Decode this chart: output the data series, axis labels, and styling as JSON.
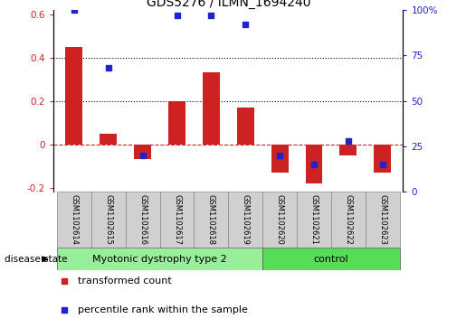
{
  "title": "GDS5276 / ILMN_1694240",
  "samples": [
    "GSM1102614",
    "GSM1102615",
    "GSM1102616",
    "GSM1102617",
    "GSM1102618",
    "GSM1102619",
    "GSM1102620",
    "GSM1102621",
    "GSM1102622",
    "GSM1102623"
  ],
  "red_bars": [
    0.45,
    0.05,
    -0.07,
    0.2,
    0.33,
    0.17,
    -0.13,
    -0.18,
    -0.05,
    -0.13
  ],
  "blue_dots": [
    1.0,
    0.68,
    0.2,
    0.97,
    0.97,
    0.92,
    0.2,
    0.15,
    0.28,
    0.15
  ],
  "red_color": "#cc2222",
  "blue_color": "#2222cc",
  "ylim_left": [
    -0.22,
    0.62
  ],
  "ylim_right": [
    0.0,
    1.0
  ],
  "yticks_left": [
    -0.2,
    0.0,
    0.2,
    0.4,
    0.6
  ],
  "yticks_right": [
    0.0,
    0.25,
    0.5,
    0.75,
    1.0
  ],
  "ytick_labels_right": [
    "0",
    "25",
    "50",
    "75",
    "100%"
  ],
  "ytick_labels_left": [
    "-0.2",
    "0",
    "0.2",
    "0.4",
    "0.6"
  ],
  "hline_vals": [
    0.2,
    0.4
  ],
  "group_labels": [
    "Myotonic dystrophy type 2",
    "control"
  ],
  "group_colors": [
    "#99ee99",
    "#55dd55"
  ],
  "group_ranges": [
    [
      0,
      6
    ],
    [
      6,
      10
    ]
  ],
  "legend_red": "transformed count",
  "legend_blue": "percentile rank within the sample",
  "bar_width": 0.5,
  "disease_state_label": "disease state"
}
